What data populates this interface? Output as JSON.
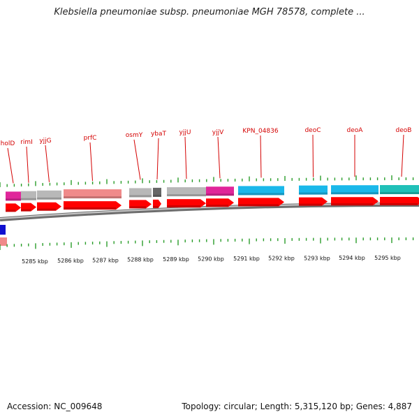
{
  "title": "Klebsiella pneumoniae subsp. pneumoniae MGH 78578, complete ...",
  "footer": {
    "accession": "Accession: NC_009648",
    "stats": "Topology: circular; Length: 5,315,120 bp; Genes: 4,887"
  },
  "colors": {
    "label": "#d40000",
    "arrow": "#ff0000",
    "tick": "#2a9d2a",
    "backbone": "#8a8a8a"
  },
  "genes": [
    {
      "name": "holD",
      "color": "#e0269a"
    },
    {
      "name": "rimI",
      "color": "#b8b8b8"
    },
    {
      "name": "yjjG",
      "color": "#b8b8b8"
    },
    {
      "name": "prfC",
      "color": "#f08a8a"
    },
    {
      "name": "osmY",
      "color": "#b8b8b8"
    },
    {
      "name": "ybaT",
      "color": "#666666"
    },
    {
      "name": "yjjU",
      "color": "#b8b8b8"
    },
    {
      "name": "yjjV",
      "color": "#e0269a"
    },
    {
      "name": "KPN_04836",
      "color": "#1ab8ea"
    },
    {
      "name": "deoC",
      "color": "#1ab8ea"
    },
    {
      "name": "deoA",
      "color": "#1ab8ea"
    },
    {
      "name": "deoB",
      "color": "#20c0b8"
    }
  ],
  "kbp_labels": [
    "5285 kbp",
    "5286 kbp",
    "5287 kbp",
    "5288 kbp",
    "5289 kbp",
    "5290 kbp",
    "5291 kbp",
    "5292 kbp",
    "5293 kbp",
    "5294 kbp",
    "5295 kbp"
  ]
}
